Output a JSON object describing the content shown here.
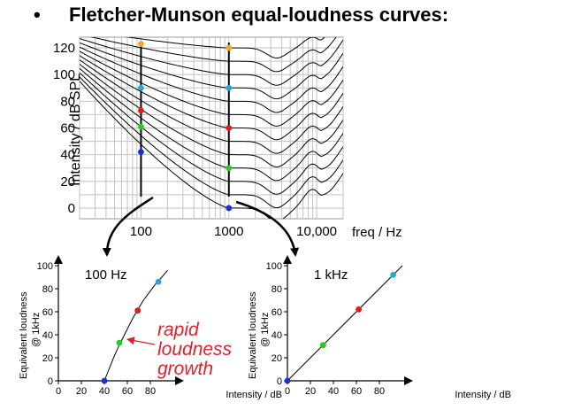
{
  "slide": {
    "bullet": "•",
    "title": "Fletcher-Munson equal-loudness curves:"
  },
  "colors": {
    "orange": "#f5a623",
    "cyan": "#2aa5d8",
    "red": "#e01a1a",
    "green": "#22cc22",
    "blue": "#1a2fd8",
    "annotation": "#e0202a"
  },
  "chart_data": [
    {
      "type": "line",
      "title": "",
      "xlabel": "freq / Hz",
      "ylabel": "Intensity / dB SPL",
      "x_scale": "log",
      "xlim": [
        20,
        20000
      ],
      "ylim": [
        -8,
        128
      ],
      "x_ticks": [
        {
          "value": 100,
          "label": "100"
        },
        {
          "value": 1000,
          "label": "1000"
        },
        {
          "value": 10000,
          "label": "10,000"
        }
      ],
      "y_ticks": [
        0,
        20,
        40,
        60,
        80,
        100,
        120
      ],
      "grid": true,
      "curves_phon": [
        0,
        10,
        20,
        30,
        40,
        50,
        60,
        70,
        80,
        90,
        100,
        110,
        120
      ],
      "markers": [
        {
          "freq": 100,
          "db": 123,
          "color": "orange"
        },
        {
          "freq": 100,
          "db": 90,
          "color": "cyan"
        },
        {
          "freq": 100,
          "db": 73,
          "color": "red"
        },
        {
          "freq": 100,
          "db": 61,
          "color": "green"
        },
        {
          "freq": 100,
          "db": 42,
          "color": "blue"
        },
        {
          "freq": 1000,
          "db": 120,
          "color": "orange"
        },
        {
          "freq": 1000,
          "db": 90,
          "color": "cyan"
        },
        {
          "freq": 1000,
          "db": 60,
          "color": "red"
        },
        {
          "freq": 1000,
          "db": 30,
          "color": "green"
        },
        {
          "freq": 1000,
          "db": 0,
          "color": "blue"
        }
      ]
    },
    {
      "type": "line",
      "title": "100 Hz",
      "xlabel": "Intensity / dB",
      "ylabel": "Equivalent loudness @ 1kHz",
      "xlim": [
        0,
        100
      ],
      "ylim": [
        0,
        100
      ],
      "x_ticks": [
        0,
        20,
        40,
        60,
        80
      ],
      "y_ticks": [
        0,
        20,
        40,
        60,
        80,
        100
      ],
      "series": [
        {
          "x": [
            40,
            44,
            48,
            52,
            56,
            60,
            64,
            68,
            74,
            80,
            86,
            90,
            95
          ],
          "y": [
            0,
            10,
            20,
            29,
            37,
            45,
            53,
            60,
            70,
            78,
            86,
            90,
            96
          ]
        }
      ],
      "points": [
        {
          "x": 40,
          "y": 0,
          "color": "blue"
        },
        {
          "x": 53,
          "y": 33,
          "color": "green"
        },
        {
          "x": 69,
          "y": 61,
          "color": "red"
        },
        {
          "x": 87,
          "y": 86,
          "color": "cyan"
        }
      ],
      "annotation": [
        "rapid",
        "loudness",
        "growth"
      ]
    },
    {
      "type": "line",
      "title": "1 kHz",
      "xlabel": "Intensity / dB",
      "ylabel": "Equivalent loudness @ 1kHz",
      "xlim": [
        0,
        100
      ],
      "ylim": [
        0,
        100
      ],
      "x_ticks": [
        0,
        20,
        40,
        60,
        80
      ],
      "y_ticks": [
        0,
        20,
        40,
        60,
        80,
        100
      ],
      "series": [
        {
          "x": [
            0,
            100
          ],
          "y": [
            0,
            100
          ]
        }
      ],
      "points": [
        {
          "x": 0,
          "y": 0,
          "color": "blue"
        },
        {
          "x": 31,
          "y": 31,
          "color": "green"
        },
        {
          "x": 62,
          "y": 62,
          "color": "red"
        },
        {
          "x": 92,
          "y": 92,
          "color": "cyan"
        }
      ]
    }
  ]
}
